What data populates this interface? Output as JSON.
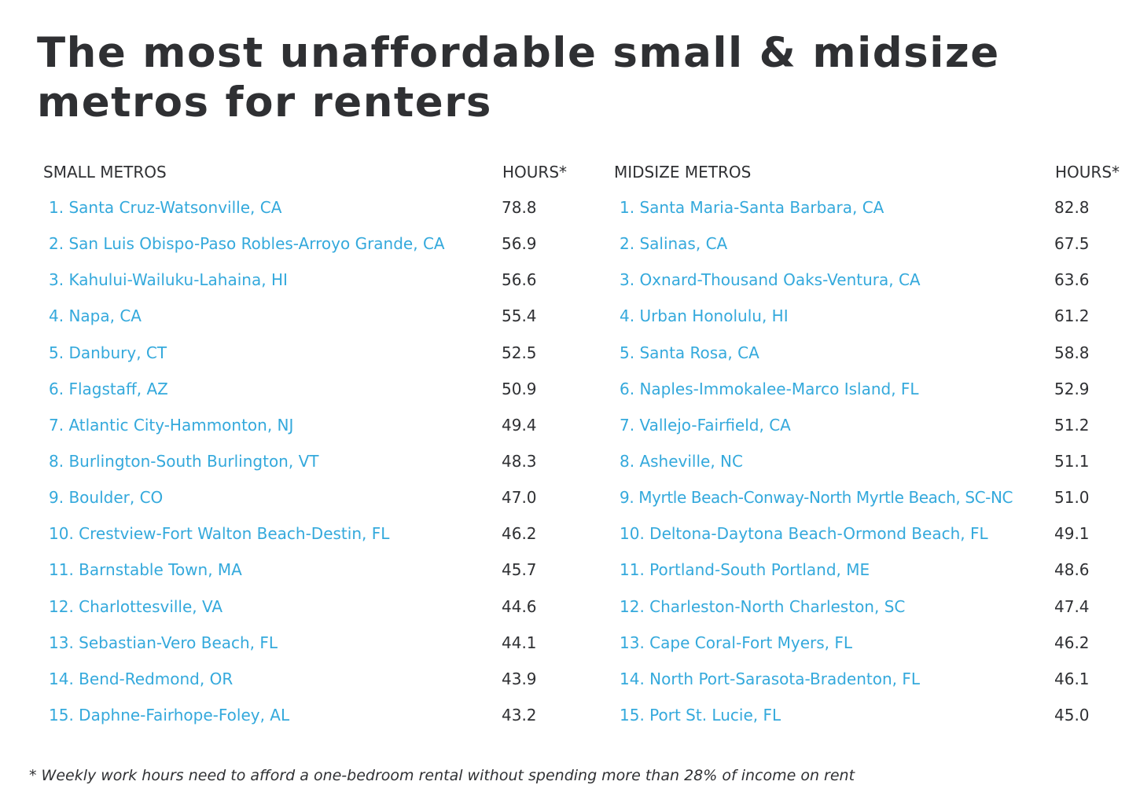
{
  "title": "The most unaffordable small & midsize metros for renters",
  "small": {
    "header": "SMALL METROS",
    "hours_header": "HOURS*",
    "rows": [
      {
        "metro": "1. Santa Cruz-Watsonville, CA",
        "hours": "78.8"
      },
      {
        "metro": "2. San Luis Obispo-Paso Robles-Arroyo Grande, CA",
        "hours": "56.9"
      },
      {
        "metro": "3. Kahului-Wailuku-Lahaina, HI",
        "hours": "56.6"
      },
      {
        "metro": "4. Napa, CA",
        "hours": "55.4"
      },
      {
        "metro": "5. Danbury, CT",
        "hours": "52.5"
      },
      {
        "metro": "6. Flagstaff, AZ",
        "hours": "50.9"
      },
      {
        "metro": "7. Atlantic City-Hammonton, NJ",
        "hours": "49.4"
      },
      {
        "metro": "8. Burlington-South Burlington, VT",
        "hours": "48.3"
      },
      {
        "metro": "9. Boulder, CO",
        "hours": "47.0"
      },
      {
        "metro": "10. Crestview-Fort Walton Beach-Destin, FL",
        "hours": "46.2"
      },
      {
        "metro": "11. Barnstable Town, MA",
        "hours": "45.7"
      },
      {
        "metro": "12. Charlottesville, VA",
        "hours": "44.6"
      },
      {
        "metro": "13. Sebastian-Vero Beach, FL",
        "hours": "44.1"
      },
      {
        "metro": "14. Bend-Redmond, OR",
        "hours": "43.9"
      },
      {
        "metro": "15. Daphne-Fairhope-Foley, AL",
        "hours": "43.2"
      }
    ]
  },
  "midsize": {
    "header": "MIDSIZE METROS",
    "hours_header": "HOURS*",
    "rows": [
      {
        "metro": "1. Santa Maria-Santa Barbara, CA",
        "hours": "82.8"
      },
      {
        "metro": "2. Salinas, CA",
        "hours": "67.5"
      },
      {
        "metro": "3. Oxnard-Thousand Oaks-Ventura, CA",
        "hours": "63.6"
      },
      {
        "metro": "4. Urban Honolulu, HI",
        "hours": "61.2"
      },
      {
        "metro": "5. Santa Rosa, CA",
        "hours": "58.8"
      },
      {
        "metro": "6. Naples-Immokalee-Marco Island, FL",
        "hours": "52.9"
      },
      {
        "metro": "7. Vallejo-Fairfield, CA",
        "hours": "51.2"
      },
      {
        "metro": "8. Asheville, NC",
        "hours": "51.1"
      },
      {
        "metro": "9. Myrtle Beach-Conway-North Myrtle Beach, SC-NC",
        "hours": "51.0"
      },
      {
        "metro": "10. Deltona-Daytona Beach-Ormond Beach, FL",
        "hours": "49.1"
      },
      {
        "metro": "11. Portland-South Portland, ME",
        "hours": "48.6"
      },
      {
        "metro": "12. Charleston-North Charleston, SC",
        "hours": "47.4"
      },
      {
        "metro": "13. Cape Coral-Fort Myers, FL",
        "hours": "46.2"
      },
      {
        "metro": "14. North Port-Sarasota-Bradenton, FL",
        "hours": "46.1"
      },
      {
        "metro": "15. Port St. Lucie, FL",
        "hours": "45.0"
      }
    ]
  },
  "footnote": "* Weekly work hours need to afford a one-bedroom rental without spending more than 28% of income on rent",
  "colors": {
    "link": "#34a9dc",
    "text": "#2f3033"
  }
}
